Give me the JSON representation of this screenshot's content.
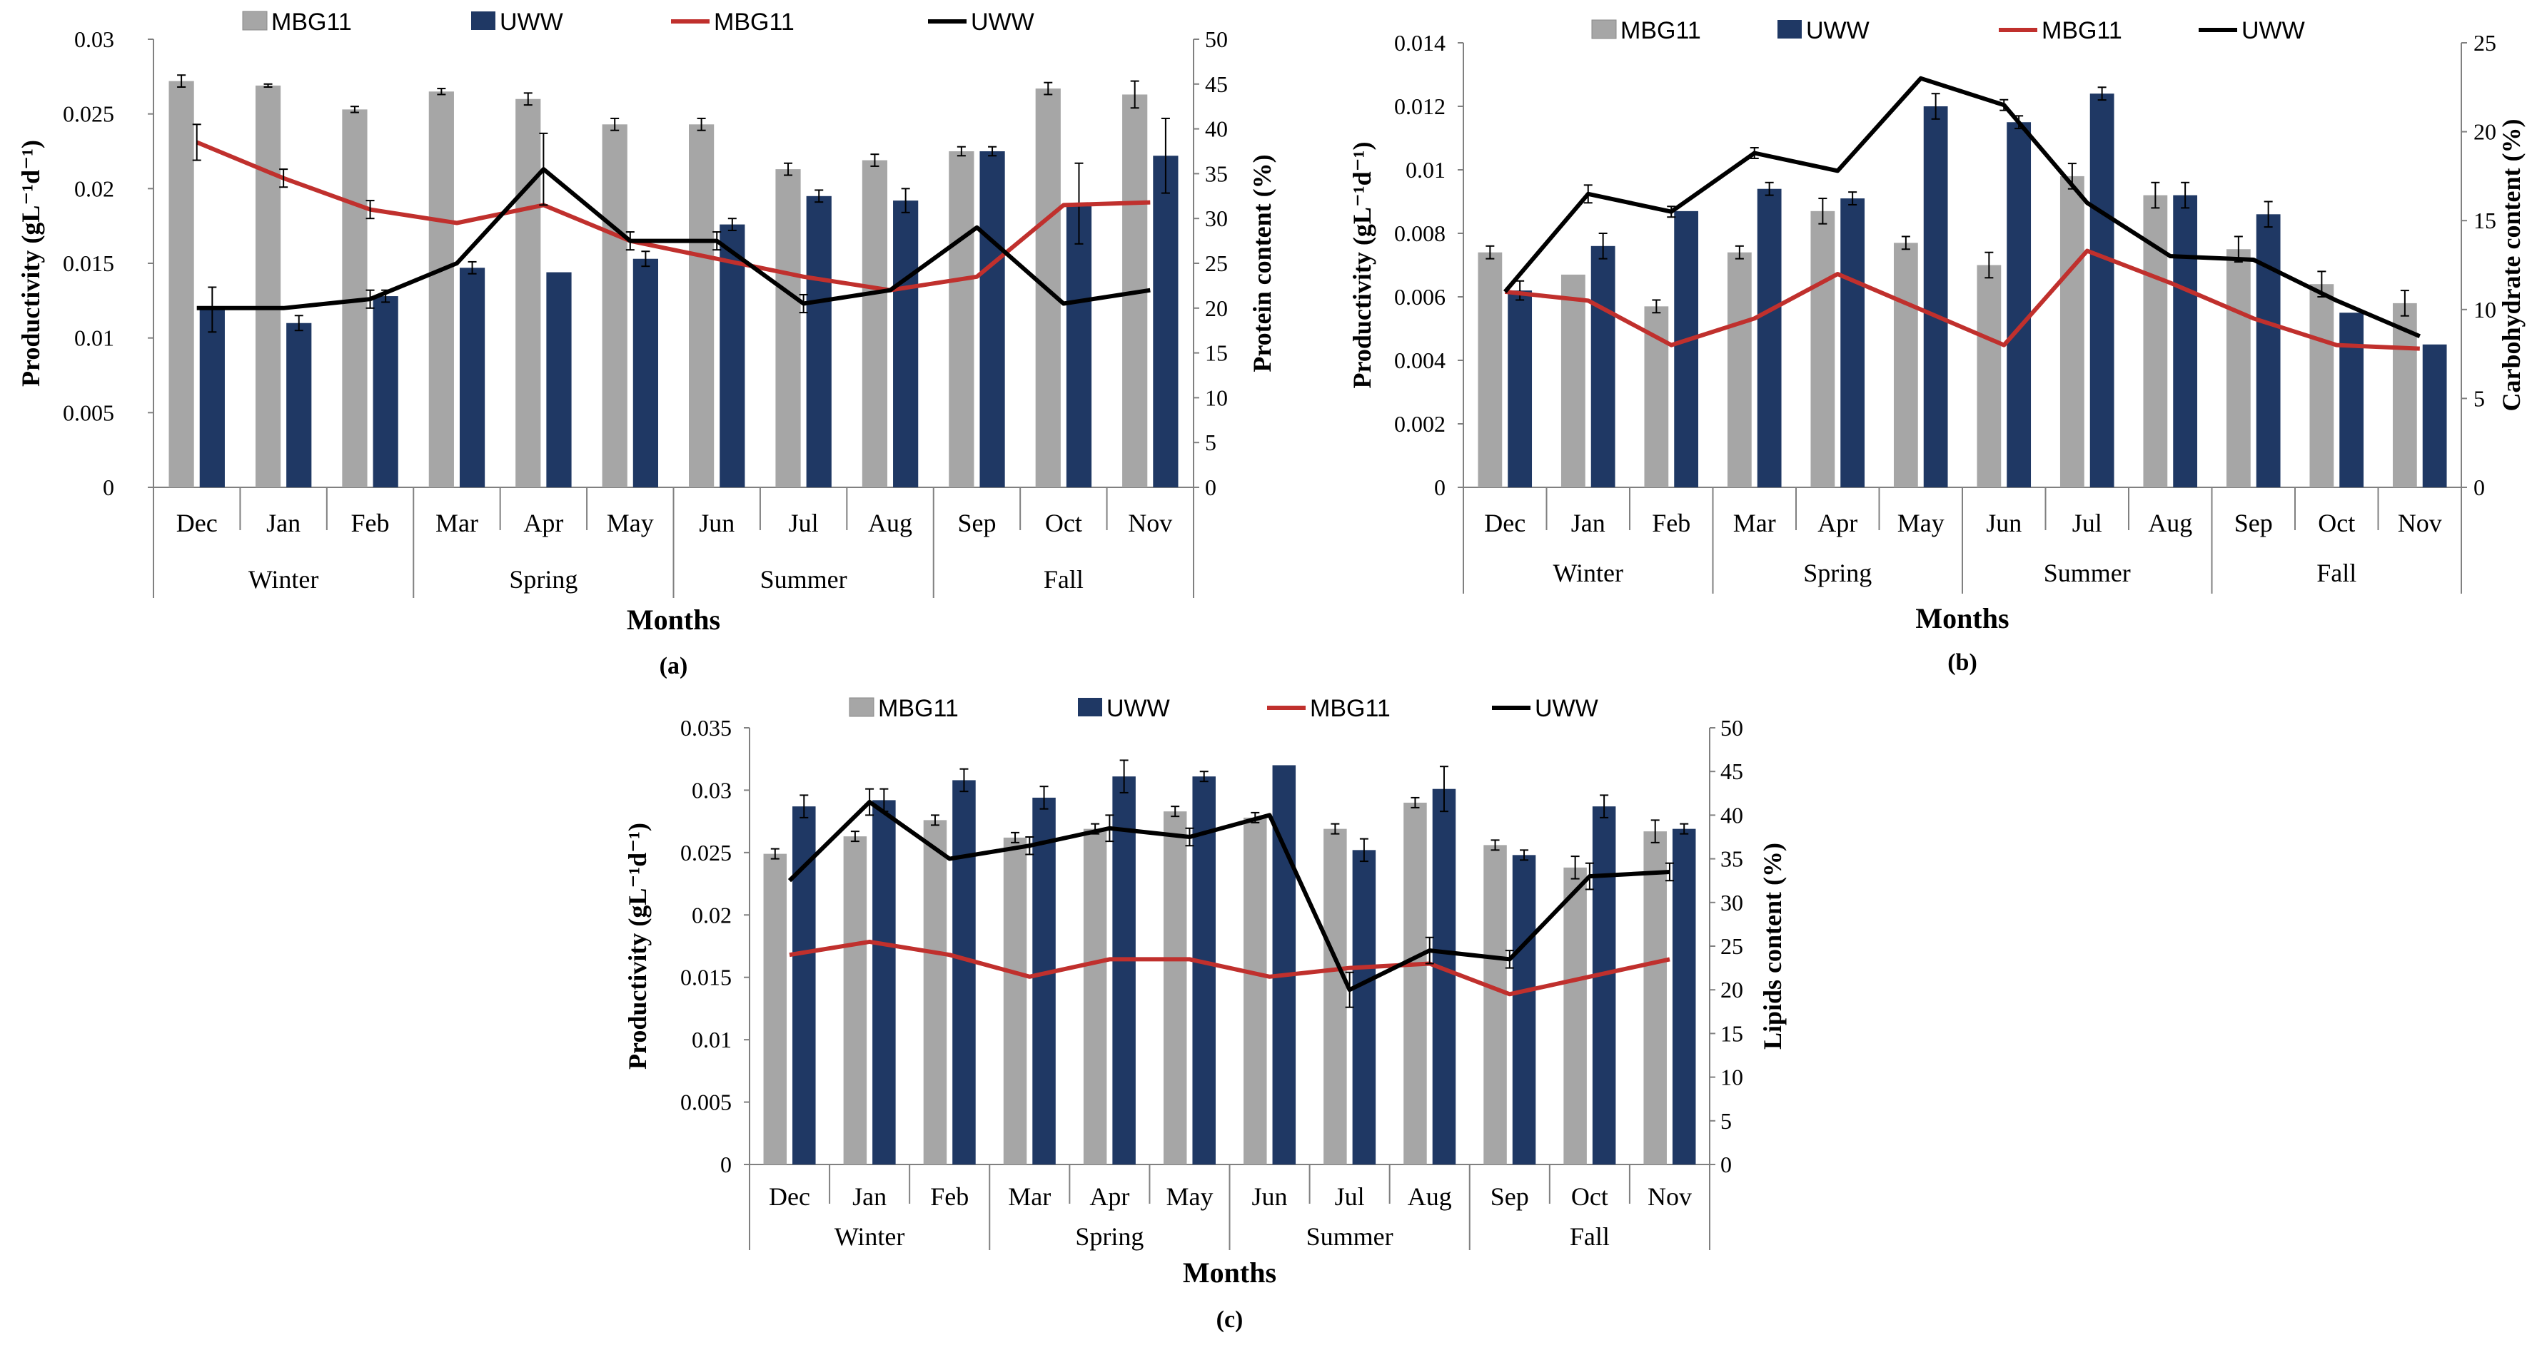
{
  "colors": {
    "mbg11_bar": "#a6a6a6",
    "uww_bar": "#1f3864",
    "mbg11_line": "#c0302d",
    "uww_line": "#000000"
  },
  "chart_data": [
    {
      "id": "a",
      "type": "bar",
      "caption": "(a)",
      "categories": [
        "Dec",
        "Jan",
        "Feb",
        "Mar",
        "Apr",
        "May",
        "Jun",
        "Jul",
        "Aug",
        "Sep",
        "Oct",
        "Nov"
      ],
      "groups": [
        {
          "label": "Winter",
          "months": [
            "Dec",
            "Jan",
            "Feb"
          ]
        },
        {
          "label": "Spring",
          "months": [
            "Mar",
            "Apr",
            "May"
          ]
        },
        {
          "label": "Summer",
          "months": [
            "Jun",
            "Jul",
            "Aug"
          ]
        },
        {
          "label": "Fall",
          "months": [
            "Sep",
            "Oct",
            "Nov"
          ]
        }
      ],
      "xlabel": "Months",
      "ylabel": "Productivity (gL⁻¹d⁻¹)",
      "y2label": "Protein content (%)",
      "ylim": [
        0,
        0.03
      ],
      "yticks": [
        0,
        0.005,
        0.01,
        0.015,
        0.02,
        0.025,
        0.03
      ],
      "ytick_labels": [
        "0",
        "0.005",
        "0.01",
        "0.015",
        "0.02",
        "0.025",
        "0.03"
      ],
      "y2lim": [
        0,
        50
      ],
      "y2ticks": [
        0,
        5,
        10,
        15,
        20,
        25,
        30,
        35,
        40,
        45,
        50
      ],
      "y2tick_labels": [
        "0",
        "5",
        "10",
        "15",
        "20",
        "25",
        "30",
        "35",
        "40",
        "45",
        "50"
      ],
      "legend": [
        "MBG11",
        "UWW",
        "MBG11",
        "UWW"
      ],
      "bar_series": [
        {
          "name": "MBG11",
          "values": [
            0.0272,
            0.0269,
            0.0253,
            0.0265,
            0.026,
            0.0243,
            0.0243,
            0.0213,
            0.0219,
            0.0225,
            0.0267,
            0.0263
          ],
          "err": [
            0.0004,
            0.0001,
            0.0002,
            0.0002,
            0.0004,
            0.0004,
            0.0004,
            0.0004,
            0.0004,
            0.0003,
            0.0004,
            0.0009
          ]
        },
        {
          "name": "UWW",
          "values": [
            0.0119,
            0.011,
            0.0128,
            0.0147,
            0.0144,
            0.0153,
            0.0176,
            0.0195,
            0.0192,
            0.0225,
            0.019,
            0.0222
          ],
          "err": [
            0.0015,
            0.0005,
            0.0004,
            0.0004,
            0.0,
            0.0005,
            0.0004,
            0.0004,
            0.0008,
            0.0003,
            0.0027,
            0.0025
          ]
        }
      ],
      "line_series": [
        {
          "name": "MBG11",
          "values": [
            38.5,
            34.5,
            31.0,
            29.5,
            31.5,
            27.5,
            25.5,
            23.5,
            22.0,
            23.5,
            31.5,
            31.8
          ],
          "err": [
            2.0,
            1.0,
            1.0,
            0,
            0,
            0,
            0,
            0,
            0,
            0,
            0,
            0
          ]
        },
        {
          "name": "UWW",
          "values": [
            20.0,
            20.0,
            21.0,
            25.0,
            35.5,
            27.5,
            27.5,
            20.5,
            22.0,
            29.0,
            20.5,
            22.0
          ],
          "err": [
            0,
            0,
            1.0,
            0,
            4.0,
            1.0,
            1.0,
            1.0,
            0,
            0,
            0,
            0
          ]
        }
      ]
    },
    {
      "id": "b",
      "type": "bar",
      "caption": "(b)",
      "categories": [
        "Dec",
        "Jan",
        "Feb",
        "Mar",
        "Apr",
        "May",
        "Jun",
        "Jul",
        "Aug",
        "Sep",
        "Oct",
        "Nov"
      ],
      "groups": [
        {
          "label": "Winter",
          "months": [
            "Dec",
            "Jan",
            "Feb"
          ]
        },
        {
          "label": "Spring",
          "months": [
            "Mar",
            "Apr",
            "May"
          ]
        },
        {
          "label": "Summer",
          "months": [
            "Jun",
            "Jul",
            "Aug"
          ]
        },
        {
          "label": "Fall",
          "months": [
            "Sep",
            "Oct",
            "Nov"
          ]
        }
      ],
      "xlabel": "Months",
      "ylabel": "Productivity (gL⁻¹d⁻¹)",
      "y2label": "Carbohydrate content (%)",
      "ylim": [
        0,
        0.014
      ],
      "yticks": [
        0,
        0.002,
        0.004,
        0.006,
        0.008,
        0.01,
        0.012,
        0.014
      ],
      "ytick_labels": [
        "0",
        "0.002",
        "0.004",
        "0.006",
        "0.008",
        "0.01",
        "0.012",
        "0.014"
      ],
      "y2lim": [
        0,
        25
      ],
      "y2ticks": [
        0,
        5,
        10,
        15,
        20,
        25
      ],
      "y2tick_labels": [
        "0",
        "5",
        "10",
        "15",
        "20",
        "25"
      ],
      "legend": [
        "MBG11",
        "UWW",
        "MBG11",
        "UWW"
      ],
      "bar_series": [
        {
          "name": "MBG11",
          "values": [
            0.0074,
            0.0067,
            0.0057,
            0.0074,
            0.0087,
            0.0077,
            0.007,
            0.0098,
            0.0092,
            0.0075,
            0.0064,
            0.0058
          ],
          "err": [
            0.0002,
            0.0,
            0.0002,
            0.0002,
            0.0004,
            0.0002,
            0.0004,
            0.0004,
            0.0004,
            0.0004,
            0.0004,
            0.0004
          ]
        },
        {
          "name": "UWW",
          "values": [
            0.0062,
            0.0076,
            0.0087,
            0.0094,
            0.0091,
            0.012,
            0.0115,
            0.0124,
            0.0092,
            0.0086,
            0.0055,
            0.0045
          ],
          "err": [
            0.0003,
            0.0004,
            0.0,
            0.0002,
            0.0002,
            0.0004,
            0.0002,
            0.0002,
            0.0004,
            0.0004,
            0.0,
            0.0
          ]
        }
      ],
      "line_series": [
        {
          "name": "MBG11",
          "values": [
            11.0,
            10.5,
            8.0,
            9.5,
            12.0,
            10.0,
            8.0,
            13.3,
            11.5,
            9.5,
            8.0,
            7.8
          ],
          "err": [
            0,
            0,
            0,
            0,
            0,
            0,
            0,
            0,
            0,
            0,
            0,
            0
          ]
        },
        {
          "name": "UWW",
          "values": [
            11.0,
            16.5,
            15.5,
            18.8,
            17.8,
            23.0,
            21.5,
            16.0,
            13.0,
            12.8,
            10.5,
            8.5
          ],
          "err": [
            0,
            0.5,
            0.3,
            0.3,
            0,
            0,
            0.3,
            0,
            0,
            0,
            0,
            0
          ]
        }
      ]
    },
    {
      "id": "c",
      "type": "bar",
      "caption": "(c)",
      "categories": [
        "Dec",
        "Jan",
        "Feb",
        "Mar",
        "Apr",
        "May",
        "Jun",
        "Jul",
        "Aug",
        "Sep",
        "Oct",
        "Nov"
      ],
      "groups": [
        {
          "label": "Winter",
          "months": [
            "Dec",
            "Jan",
            "Feb"
          ]
        },
        {
          "label": "Spring",
          "months": [
            "Mar",
            "Apr",
            "May"
          ]
        },
        {
          "label": "Summer",
          "months": [
            "Jun",
            "Jul",
            "Aug"
          ]
        },
        {
          "label": "Fall",
          "months": [
            "Sep",
            "Oct",
            "Nov"
          ]
        }
      ],
      "xlabel": "Months",
      "ylabel": "Productivity (gL⁻¹d⁻¹)",
      "y2label": "Lipids content (%)",
      "ylim": [
        0,
        0.035
      ],
      "yticks": [
        0,
        0.005,
        0.01,
        0.015,
        0.02,
        0.025,
        0.03,
        0.035
      ],
      "ytick_labels": [
        "0",
        "0.005",
        "0.01",
        "0.015",
        "0.02",
        "0.025",
        "0.03",
        "0.035"
      ],
      "y2lim": [
        0,
        50
      ],
      "y2ticks": [
        0,
        5,
        10,
        15,
        20,
        25,
        30,
        35,
        40,
        45,
        50
      ],
      "y2tick_labels": [
        "0",
        "5",
        "10",
        "15",
        "20",
        "25",
        "30",
        "35",
        "40",
        "45",
        "50"
      ],
      "legend": [
        "MBG11",
        "UWW",
        "MBG11",
        "UWW"
      ],
      "bar_series": [
        {
          "name": "MBG11",
          "values": [
            0.0249,
            0.0263,
            0.0276,
            0.0262,
            0.0269,
            0.0283,
            0.0278,
            0.0269,
            0.029,
            0.0256,
            0.0238,
            0.0267
          ],
          "err": [
            0.0004,
            0.0004,
            0.0004,
            0.0004,
            0.0004,
            0.0004,
            0.0004,
            0.0004,
            0.0004,
            0.0004,
            0.0009,
            0.0009
          ]
        },
        {
          "name": "UWW",
          "values": [
            0.0287,
            0.0292,
            0.0308,
            0.0294,
            0.0311,
            0.0311,
            0.032,
            0.0252,
            0.0301,
            0.0248,
            0.0287,
            0.0269
          ],
          "err": [
            0.0009,
            0.0009,
            0.0009,
            0.0009,
            0.0013,
            0.0004,
            0.0,
            0.0009,
            0.0018,
            0.0004,
            0.0009,
            0.0004
          ]
        }
      ],
      "line_series": [
        {
          "name": "MBG11",
          "values": [
            24.0,
            25.5,
            24.0,
            21.5,
            23.5,
            23.5,
            21.5,
            22.5,
            23.0,
            19.5,
            21.5,
            23.5
          ],
          "err": [
            0,
            0,
            0,
            0,
            0,
            0,
            0,
            0,
            0,
            0,
            0,
            0
          ]
        },
        {
          "name": "UWW",
          "values": [
            32.5,
            41.5,
            35.0,
            36.5,
            38.5,
            37.5,
            40.0,
            20.0,
            24.5,
            23.5,
            33.0,
            33.5
          ],
          "err": [
            0,
            1.5,
            0,
            1.0,
            1.5,
            1.0,
            0,
            2.0,
            1.5,
            1.0,
            1.5,
            1.0
          ]
        }
      ]
    }
  ]
}
